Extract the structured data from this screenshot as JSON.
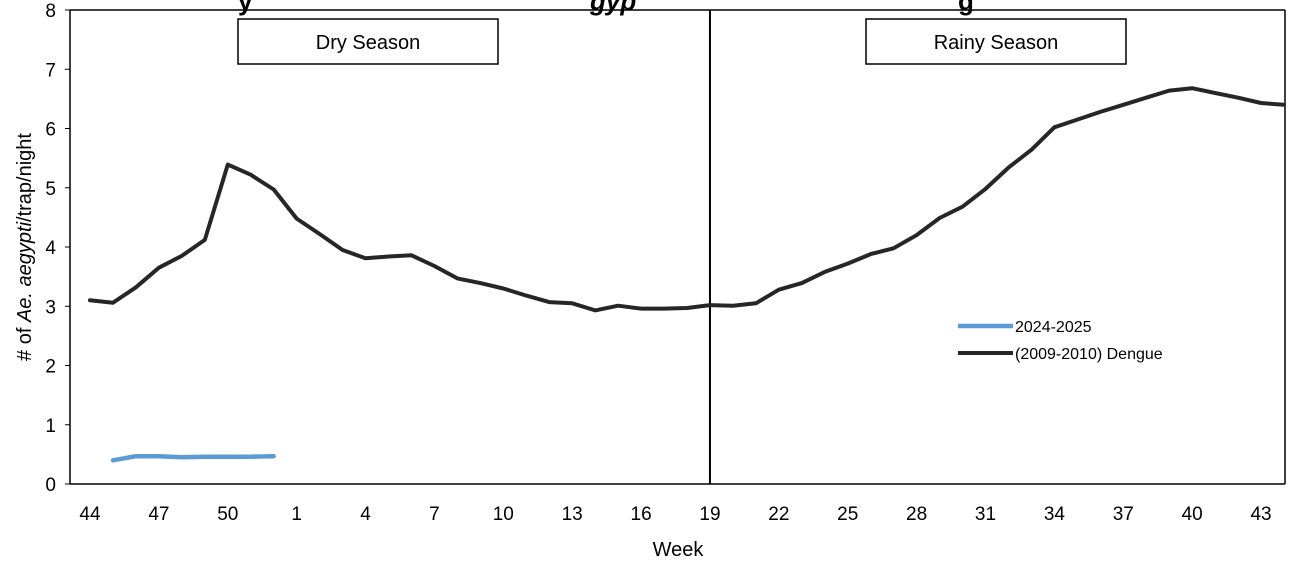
{
  "chart_data": {
    "type": "line",
    "title_visible_fragment": "y",
    "title_italic_fragment": "gyp",
    "title_end_fragment": "g",
    "xlabel": "Week",
    "ylabel_prefix": "# of ",
    "ylabel_italic": "Ae. aegypti",
    "ylabel_suffix": "/trap/night",
    "ylim": [
      0,
      8
    ],
    "y_ticks": [
      "0",
      "1",
      "2",
      "3",
      "4",
      "5",
      "6",
      "7",
      "8"
    ],
    "x_weeks": [
      44,
      45,
      46,
      47,
      48,
      49,
      50,
      51,
      52,
      1,
      2,
      3,
      4,
      5,
      6,
      7,
      8,
      9,
      10,
      11,
      12,
      13,
      14,
      15,
      16,
      17,
      18,
      19,
      20,
      21,
      22,
      23,
      24,
      25,
      26,
      27,
      28,
      29,
      30,
      31,
      32,
      33,
      34,
      35,
      36,
      37,
      38,
      39,
      40,
      41,
      42,
      43,
      44
    ],
    "x_tick_labels": [
      "44",
      "47",
      "50",
      "1",
      "4",
      "7",
      "10",
      "13",
      "16",
      "19",
      "22",
      "25",
      "28",
      "31",
      "34",
      "37",
      "40",
      "43"
    ],
    "x_tick_indices": [
      0,
      3,
      6,
      9,
      12,
      15,
      18,
      21,
      24,
      27,
      30,
      33,
      36,
      39,
      42,
      45,
      48,
      51
    ],
    "season_divider_index": 27,
    "seasons": {
      "dry": "Dry Season",
      "rainy": "Rainy Season"
    },
    "legend_position": "center-right",
    "series": [
      {
        "name": "2024-2025",
        "color": "#5B9BD5",
        "start_index": 1,
        "values": [
          0.4,
          0.47,
          0.47,
          0.45,
          0.46,
          0.46,
          0.46,
          0.47
        ]
      },
      {
        "name": "(2009-2010) Dengue",
        "color": "#262626",
        "start_index": 0,
        "values": [
          3.1,
          3.06,
          3.32,
          3.65,
          3.85,
          4.12,
          5.39,
          5.22,
          4.97,
          4.48,
          4.22,
          3.95,
          3.81,
          3.84,
          3.86,
          3.68,
          3.47,
          3.39,
          3.3,
          3.18,
          3.07,
          3.05,
          2.93,
          3.01,
          2.96,
          2.96,
          2.97,
          3.02,
          3.01,
          3.05,
          3.28,
          3.39,
          3.58,
          3.72,
          3.88,
          3.98,
          4.2,
          4.49,
          4.68,
          4.98,
          5.34,
          5.64,
          6.02,
          6.15,
          6.28,
          6.4,
          6.52,
          6.64,
          6.68,
          6.6,
          6.52,
          6.43,
          6.4
        ]
      }
    ]
  }
}
